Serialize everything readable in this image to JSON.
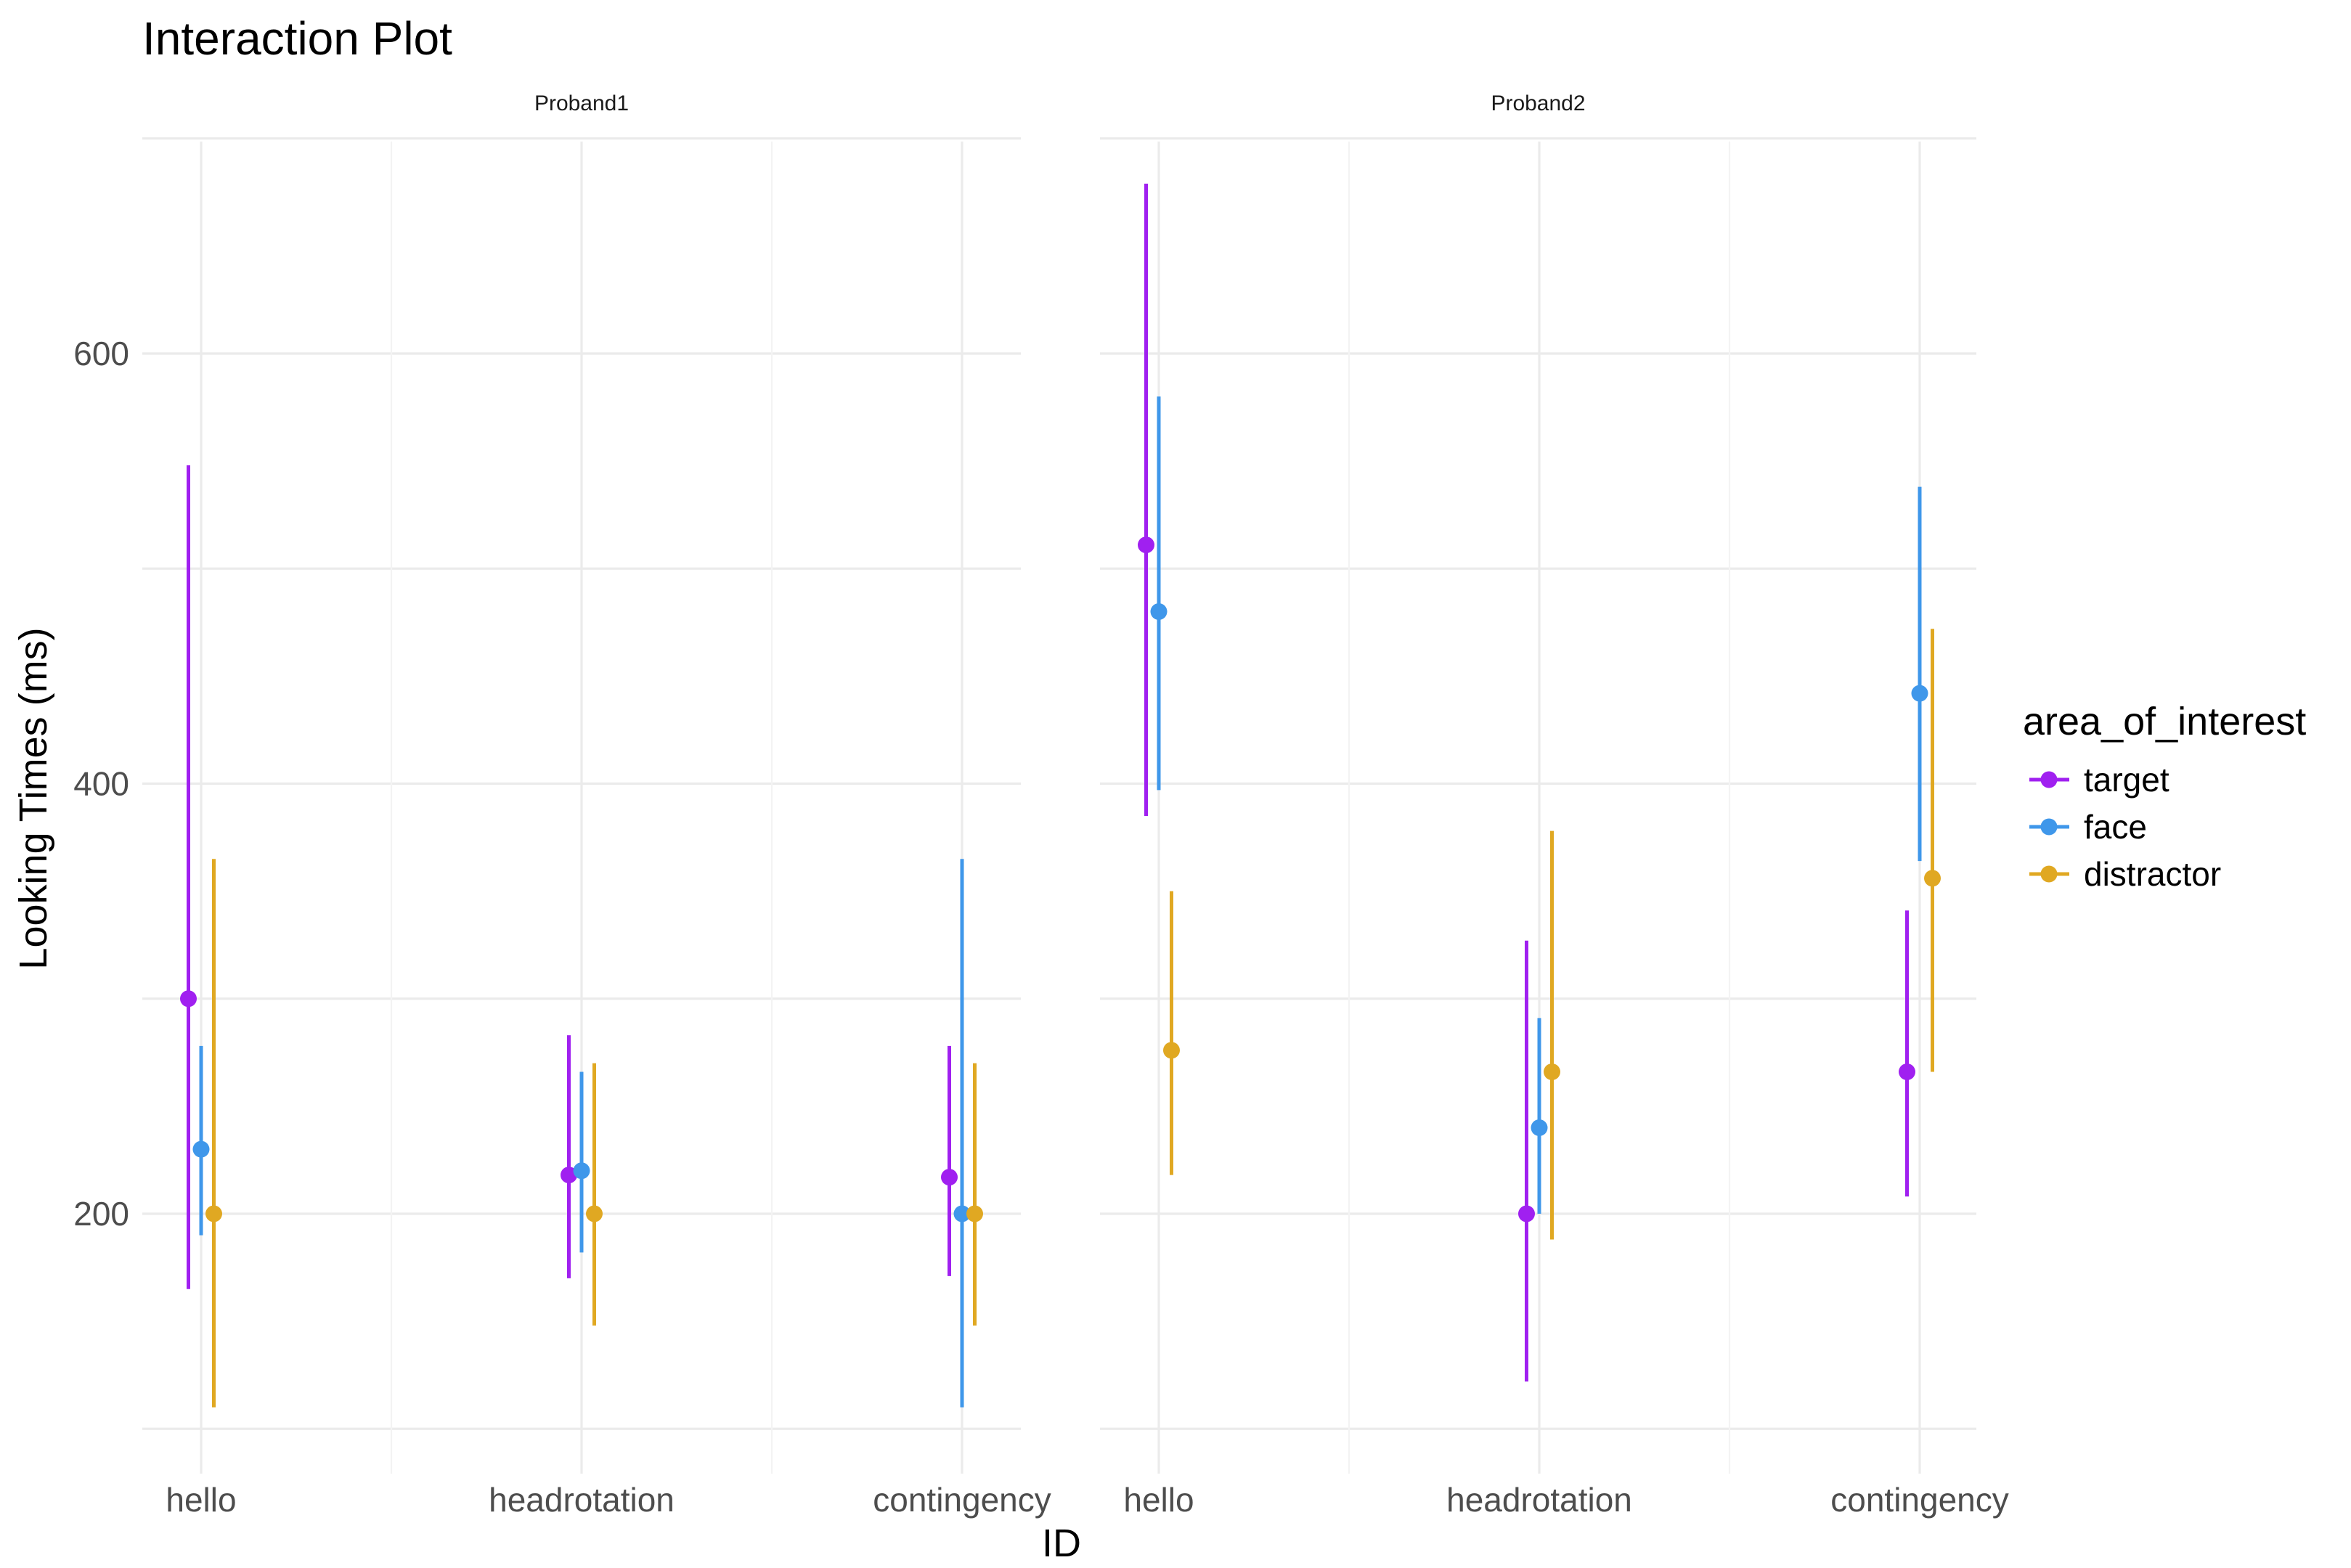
{
  "chart_data": {
    "type": "errorbar",
    "title": "Interaction Plot",
    "xlabel": "ID",
    "ylabel": "Looking Times (ms)",
    "ylim": [
      100,
      700
    ],
    "yticks": [
      200,
      400,
      600
    ],
    "categories": [
      "hello",
      "headrotation",
      "contingency"
    ],
    "legend": {
      "title": "area_of_interest",
      "position": "right",
      "entries": [
        {
          "name": "target",
          "color": "#a020f0"
        },
        {
          "name": "face",
          "color": "#3f97ea"
        },
        {
          "name": "distractor",
          "color": "#e0a822"
        }
      ]
    },
    "panels": [
      {
        "label": "Proband1",
        "series": [
          {
            "name": "target",
            "mean": [
              300,
              218,
              217
            ],
            "lower": [
              165,
              170,
              171
            ],
            "upper": [
              548,
              283,
              278
            ]
          },
          {
            "name": "face",
            "mean": [
              230,
              220,
              200
            ],
            "lower": [
              190,
              182,
              110
            ],
            "upper": [
              278,
              266,
              365
            ]
          },
          {
            "name": "distractor",
            "mean": [
              200,
              200,
              200
            ],
            "lower": [
              110,
              148,
              148
            ],
            "upper": [
              365,
              270,
              270
            ]
          }
        ]
      },
      {
        "label": "Proband2",
        "series": [
          {
            "name": "target",
            "mean": [
              511,
              200,
              266
            ],
            "lower": [
              385,
              122,
              208
            ],
            "upper": [
              679,
              327,
              341
            ]
          },
          {
            "name": "face",
            "mean": [
              480,
              240,
              442
            ],
            "lower": [
              397,
              200,
              364
            ],
            "upper": [
              580,
              291,
              538
            ]
          },
          {
            "name": "distractor",
            "mean": [
              276,
              266,
              356
            ],
            "lower": [
              218,
              188,
              266
            ],
            "upper": [
              350,
              378,
              472
            ]
          }
        ]
      }
    ]
  }
}
